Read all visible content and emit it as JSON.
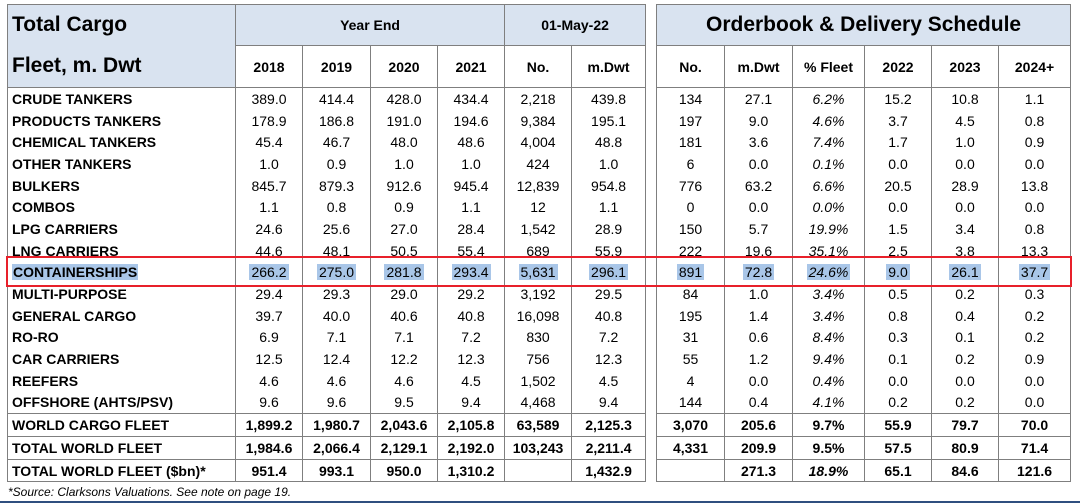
{
  "left_header": {
    "title_line1": "Total Cargo",
    "title_line2": "Fleet, m. Dwt",
    "group_year_end": "Year End",
    "group_date": "01-May-22",
    "cols": [
      "2018",
      "2019",
      "2020",
      "2021",
      "No.",
      "m.Dwt"
    ]
  },
  "right_header": {
    "title": "Orderbook & Delivery Schedule",
    "cols": [
      "No.",
      "m.Dwt",
      "% Fleet",
      "2022",
      "2023",
      "2024+"
    ]
  },
  "rows": [
    {
      "name": "CRUDE TANKERS",
      "left": [
        "389.0",
        "414.4",
        "428.0",
        "434.4",
        "2,218",
        "439.8"
      ],
      "right": [
        "134",
        "27.1",
        "6.2%",
        "15.2",
        "10.8",
        "1.1"
      ]
    },
    {
      "name": "PRODUCTS TANKERS",
      "left": [
        "178.9",
        "186.8",
        "191.0",
        "194.6",
        "9,384",
        "195.1"
      ],
      "right": [
        "197",
        "9.0",
        "4.6%",
        "3.7",
        "4.5",
        "0.8"
      ]
    },
    {
      "name": "CHEMICAL TANKERS",
      "left": [
        "45.4",
        "46.7",
        "48.0",
        "48.6",
        "4,004",
        "48.8"
      ],
      "right": [
        "181",
        "3.6",
        "7.4%",
        "1.7",
        "1.0",
        "0.9"
      ]
    },
    {
      "name": "OTHER TANKERS",
      "left": [
        "1.0",
        "0.9",
        "1.0",
        "1.0",
        "424",
        "1.0"
      ],
      "right": [
        "6",
        "0.0",
        "0.1%",
        "0.0",
        "0.0",
        "0.0"
      ]
    },
    {
      "name": "BULKERS",
      "left": [
        "845.7",
        "879.3",
        "912.6",
        "945.4",
        "12,839",
        "954.8"
      ],
      "right": [
        "776",
        "63.2",
        "6.6%",
        "20.5",
        "28.9",
        "13.8"
      ]
    },
    {
      "name": "COMBOS",
      "left": [
        "1.1",
        "0.8",
        "0.9",
        "1.1",
        "12",
        "1.1"
      ],
      "right": [
        "0",
        "0.0",
        "0.0%",
        "0.0",
        "0.0",
        "0.0"
      ]
    },
    {
      "name": "LPG CARRIERS",
      "left": [
        "24.6",
        "25.6",
        "27.0",
        "28.4",
        "1,542",
        "28.9"
      ],
      "right": [
        "150",
        "5.7",
        "19.9%",
        "1.5",
        "3.4",
        "0.8"
      ]
    },
    {
      "name": "LNG CARRIERS",
      "left": [
        "44.6",
        "48.1",
        "50.5",
        "55.4",
        "689",
        "55.9"
      ],
      "right": [
        "222",
        "19.6",
        "35.1%",
        "2.5",
        "3.8",
        "13.3"
      ]
    },
    {
      "name": "CONTAINERSHIPS",
      "left": [
        "266.2",
        "275.0",
        "281.8",
        "293.4",
        "5,631",
        "296.1"
      ],
      "right": [
        "891",
        "72.8",
        "24.6%",
        "9.0",
        "26.1",
        "37.7"
      ]
    },
    {
      "name": "MULTI-PURPOSE",
      "left": [
        "29.4",
        "29.3",
        "29.0",
        "29.2",
        "3,192",
        "29.5"
      ],
      "right": [
        "84",
        "1.0",
        "3.4%",
        "0.5",
        "0.2",
        "0.3"
      ]
    },
    {
      "name": "GENERAL CARGO",
      "left": [
        "39.7",
        "40.0",
        "40.6",
        "40.8",
        "16,098",
        "40.8"
      ],
      "right": [
        "195",
        "1.4",
        "3.4%",
        "0.8",
        "0.4",
        "0.2"
      ]
    },
    {
      "name": "RO-RO",
      "left": [
        "6.9",
        "7.1",
        "7.1",
        "7.2",
        "830",
        "7.2"
      ],
      "right": [
        "31",
        "0.6",
        "8.4%",
        "0.3",
        "0.1",
        "0.2"
      ]
    },
    {
      "name": "CAR CARRIERS",
      "left": [
        "12.5",
        "12.4",
        "12.2",
        "12.3",
        "756",
        "12.3"
      ],
      "right": [
        "55",
        "1.2",
        "9.4%",
        "0.1",
        "0.2",
        "0.9"
      ]
    },
    {
      "name": "REEFERS",
      "left": [
        "4.6",
        "4.6",
        "4.6",
        "4.5",
        "1,502",
        "4.5"
      ],
      "right": [
        "4",
        "0.0",
        "0.4%",
        "0.0",
        "0.0",
        "0.0"
      ]
    },
    {
      "name": "OFFSHORE (AHTS/PSV)",
      "left": [
        "9.6",
        "9.6",
        "9.5",
        "9.4",
        "4,468",
        "9.4"
      ],
      "right": [
        "144",
        "0.4",
        "4.1%",
        "0.2",
        "0.2",
        "0.0"
      ]
    },
    {
      "name": "WORLD CARGO FLEET",
      "left": [
        "1,899.2",
        "1,980.7",
        "2,043.6",
        "2,105.8",
        "63,589",
        "2,125.3"
      ],
      "right": [
        "3,070",
        "205.6",
        "9.7%",
        "55.9",
        "79.7",
        "70.0"
      ]
    },
    {
      "name": "TOTAL WORLD FLEET",
      "left": [
        "1,984.6",
        "2,066.4",
        "2,129.1",
        "2,192.0",
        "103,243",
        "2,211.4"
      ],
      "right": [
        "4,331",
        "209.9",
        "9.5%",
        "57.5",
        "80.9",
        "71.4"
      ]
    },
    {
      "name": "TOTAL WORLD FLEET ($bn)*",
      "left": [
        "951.4",
        "993.1",
        "950.0",
        "1,310.2",
        "",
        "1,432.9"
      ],
      "right": [
        "",
        "271.3",
        "18.9%",
        "65.1",
        "84.6",
        "121.6"
      ]
    }
  ],
  "highlighted_row": "CONTAINERSHIPS",
  "footnote": "*Source: Clarksons Valuations. See note on page 19.",
  "colors": {
    "header_bg": "#d9e3f0",
    "highlight_box": "#e8202a",
    "selection": "#a9c6e8",
    "footer_line": "#2f4f7f"
  }
}
